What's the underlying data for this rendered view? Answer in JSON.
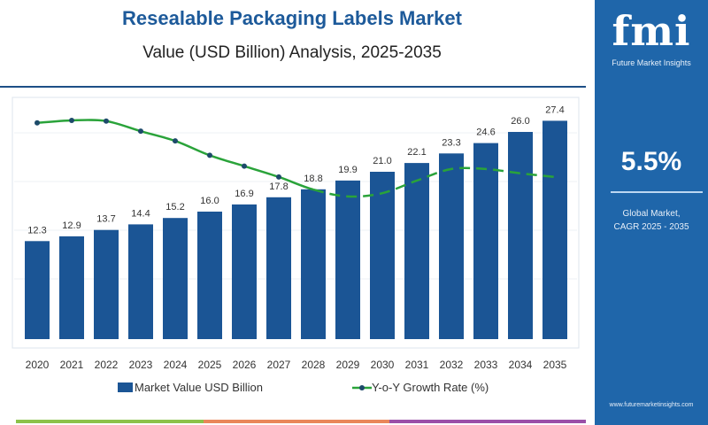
{
  "header": {
    "title": "Resealable Packaging Labels Market",
    "subtitle": "Value (USD Billion) Analysis, 2025-2035"
  },
  "side_panel": {
    "logo_text": "fmi",
    "logo_subtitle": "Future Market Insights",
    "cagr_value": "5.5%",
    "cagr_label_line1": "Global Market,",
    "cagr_label_line2": "CAGR 2025 - 2035",
    "website": "www.futuremarketinsights.com"
  },
  "colors": {
    "bar": "#1b5595",
    "line": "#2aa33a",
    "panel": "#1f66aa",
    "title": "#1d5a9a",
    "strip": [
      "#8cc24a",
      "#e9875a",
      "#9a4fa8"
    ]
  },
  "chart_data": {
    "type": "bar+line",
    "title": "Resealable Packaging Labels Market",
    "subtitle": "Value (USD Billion) Analysis, 2025-2035",
    "categories": [
      "2020",
      "2021",
      "2022",
      "2023",
      "2024",
      "2025",
      "2026",
      "2027",
      "2028",
      "2029",
      "2030",
      "2031",
      "2032",
      "2033",
      "2034",
      "2035"
    ],
    "ylim": [
      0,
      30
    ],
    "grid": true,
    "legend_placement": "bottom",
    "series": [
      {
        "name": "Market Value USD Billion",
        "type": "bar",
        "values": [
          12.3,
          12.9,
          13.7,
          14.4,
          15.2,
          16.0,
          16.9,
          17.8,
          18.8,
          19.9,
          21.0,
          22.1,
          23.3,
          24.6,
          26.0,
          27.4
        ],
        "labels": [
          "12.3",
          "12.9",
          "13.7",
          "14.4",
          "15.2",
          "16.0",
          "16.9",
          "17.8",
          "18.8",
          "19.9",
          "21.0",
          "22.1",
          "23.3",
          "24.6",
          "26.0",
          "27.4"
        ]
      },
      {
        "name": "Y-o-Y Growth Rate (%)",
        "type": "line",
        "values": [
          6.0,
          6.07,
          6.05,
          5.77,
          5.5,
          5.1,
          4.8,
          4.5,
          4.15,
          3.96,
          4.05,
          4.4,
          4.72,
          4.72,
          4.6,
          4.5
        ],
        "dashed_from": "2028"
      }
    ]
  }
}
